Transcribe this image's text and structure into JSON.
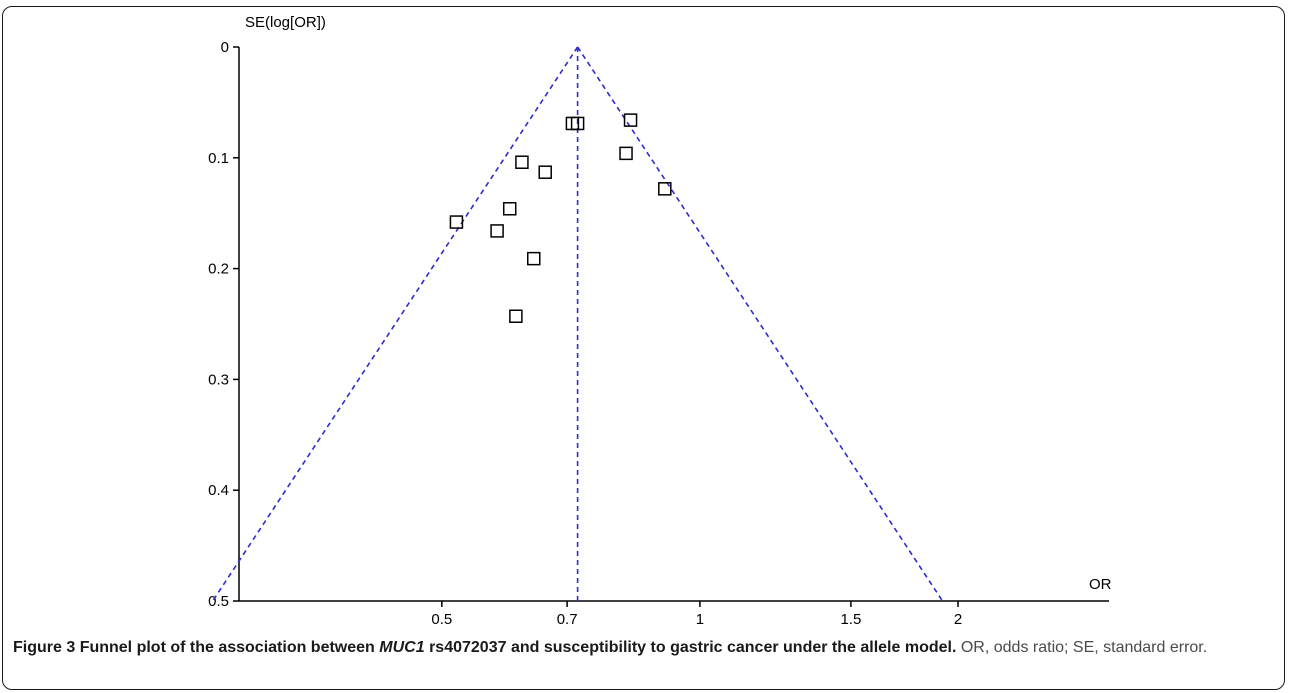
{
  "chart_data": {
    "type": "scatter",
    "xlabel": "OR",
    "ylabel": "SE(log[OR])",
    "x_scale": "log",
    "y_inverted": true,
    "x_ticks": [
      0.5,
      0.7,
      1,
      1.5,
      2
    ],
    "x_tick_labels": [
      "0.5",
      "0.7",
      "1",
      "1.5",
      "2"
    ],
    "y_ticks": [
      0,
      0.1,
      0.2,
      0.3,
      0.4,
      0.5
    ],
    "y_tick_labels": [
      "0",
      "0.1",
      "0.2",
      "0.3",
      "0.4",
      "0.5"
    ],
    "ylim": [
      0,
      0.5
    ],
    "xlim": [
      0.29,
      3.0
    ],
    "pooled_or": 0.72,
    "funnel_se_max": 0.5,
    "points": [
      {
        "x": 0.71,
        "y": 0.069
      },
      {
        "x": 0.72,
        "y": 0.069
      },
      {
        "x": 0.83,
        "y": 0.066
      },
      {
        "x": 0.82,
        "y": 0.096
      },
      {
        "x": 0.62,
        "y": 0.104
      },
      {
        "x": 0.66,
        "y": 0.113
      },
      {
        "x": 0.91,
        "y": 0.128
      },
      {
        "x": 0.6,
        "y": 0.146
      },
      {
        "x": 0.52,
        "y": 0.158
      },
      {
        "x": 0.58,
        "y": 0.166
      },
      {
        "x": 0.64,
        "y": 0.191
      },
      {
        "x": 0.61,
        "y": 0.243
      }
    ],
    "grid": false,
    "marker": "open-square",
    "line_color": "#2b2bd0"
  },
  "caption": {
    "label": "Figure 3",
    "title_before": "Funnel plot of the association between",
    "gene": "MUC1",
    "title_after": "rs4072037 and susceptibility to gastric cancer under the allele model.",
    "note": "OR, odds ratio; SE, standard error."
  }
}
